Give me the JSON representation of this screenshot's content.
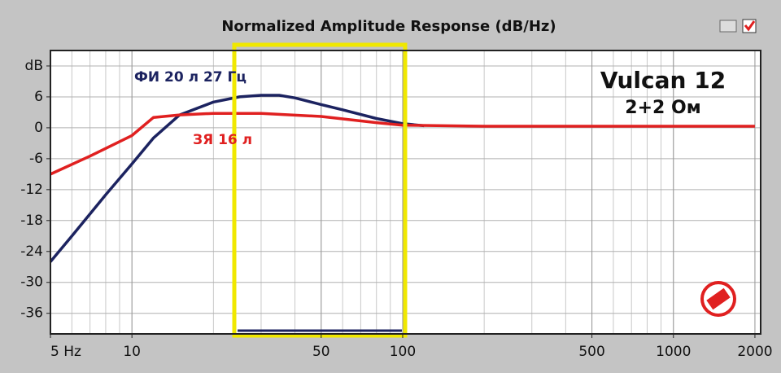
{
  "chart_data": {
    "type": "line",
    "title": "Normalized Amplitude Response (dB/Hz)",
    "log_x": true,
    "grid": true,
    "xlim": [
      5,
      2100
    ],
    "ylim": [
      -40,
      15
    ],
    "xticks": [
      {
        "value": 5,
        "label": "5 Hz"
      },
      10,
      50,
      100,
      500,
      1000,
      2000
    ],
    "yticks": [
      {
        "value": 12,
        "label": "dB"
      },
      6,
      0,
      -6,
      -12,
      -18,
      -24,
      -30,
      -36
    ],
    "series": [
      {
        "name": "ФИ 20 л 27 Гц",
        "color": "#1c2360",
        "x": [
          5,
          6,
          8,
          10,
          12,
          15,
          20,
          25,
          30,
          35,
          40,
          50,
          60,
          80,
          100,
          120
        ],
        "values": [
          -26,
          -21,
          -13,
          -7,
          -2,
          2.5,
          5,
          6,
          6.3,
          6.3,
          5.8,
          4.5,
          3.5,
          1.8,
          0.8,
          0.4
        ]
      },
      {
        "name": "ЗЯ 16 л",
        "color": "#e02020",
        "x": [
          5,
          7,
          10,
          12,
          15,
          20,
          30,
          50,
          80,
          100,
          200,
          500,
          2000
        ],
        "values": [
          -9,
          -5.5,
          -1.5,
          2,
          2.5,
          2.8,
          2.8,
          2.2,
          1,
          0.5,
          0.3,
          0.3,
          0.3
        ]
      }
    ],
    "annotations": [
      "Vulcan 12",
      "2+2 Ом"
    ]
  }
}
